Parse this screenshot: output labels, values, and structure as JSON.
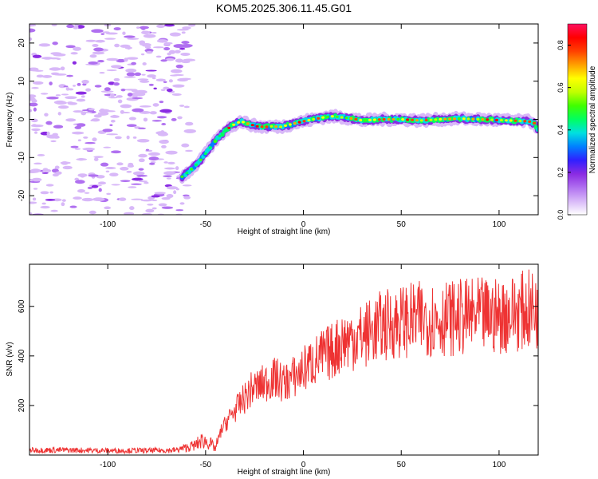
{
  "title": "KOM5.2025.306.11.45.G01",
  "chart_data": [
    {
      "type": "heatmap",
      "name": "spectrogram",
      "title": "KOM5.2025.306.11.45.G01",
      "xlabel": "Height of straight line (km)",
      "ylabel": "Frequency (Hz)",
      "xlim": [
        -140,
        120
      ],
      "ylim": [
        -25,
        25
      ],
      "x_ticks": [
        -100,
        -50,
        0,
        50,
        100
      ],
      "y_ticks": [
        -20,
        -10,
        0,
        10,
        20
      ],
      "x_tick_labels": [
        "-100",
        "-50",
        "0",
        "50",
        "100"
      ],
      "y_tick_labels": [
        "-20",
        "-10",
        "0",
        "10",
        "20"
      ],
      "noise_region_x": [
        -140,
        -57
      ],
      "ridge": {
        "x": [
          -62,
          -57,
          -53,
          -50,
          -47,
          -44,
          -40,
          -36,
          -32,
          -28,
          -24,
          -20,
          -16,
          -12,
          -8,
          -4,
          0,
          5,
          10,
          15,
          20,
          25,
          30,
          40,
          50,
          60,
          70,
          80,
          90,
          100,
          110,
          115,
          118,
          120
        ],
        "freq": [
          -15,
          -13,
          -11,
          -9,
          -7,
          -5,
          -3,
          -1.5,
          -0.5,
          -1.2,
          -1.8,
          -2,
          -1.8,
          -2,
          -1.5,
          -1,
          -0.5,
          0,
          0.5,
          0.8,
          0.5,
          0.2,
          -0.3,
          0,
          0,
          -0.3,
          0,
          0.2,
          0,
          -0.2,
          -0.4,
          -0.5,
          -1,
          -3
        ]
      },
      "colorbar": {
        "label": "Normalized spectral amplitude",
        "range": [
          0,
          0.9
        ],
        "ticks": [
          0.0,
          0.2,
          0.4,
          0.6,
          0.8
        ],
        "tick_labels": [
          "0.0",
          "0.2",
          "0.4",
          "0.6",
          "0.8"
        ],
        "colors": [
          "#ffffff",
          "#d8b8f8",
          "#b070f0",
          "#8a2be2",
          "#3020ff",
          "#0080ff",
          "#00e0e0",
          "#00ff60",
          "#40ff00",
          "#c0ff00",
          "#ffff00",
          "#ffa000",
          "#ff4000",
          "#ff0000",
          "#ff1060"
        ]
      }
    },
    {
      "type": "line",
      "name": "snr",
      "xlabel": "Height of straight line (km)",
      "ylabel": "SNR (v/v)",
      "xlim": [
        -140,
        120
      ],
      "ylim": [
        0,
        770
      ],
      "x_ticks": [
        -100,
        -50,
        0,
        50,
        100
      ],
      "y_ticks": [
        200,
        400,
        600
      ],
      "x_tick_labels": [
        "-100",
        "-50",
        "0",
        "50",
        "100"
      ],
      "y_tick_labels": [
        "200",
        "400",
        "600"
      ],
      "color": "#ee3333",
      "series": [
        {
          "name": "SNR",
          "x": [
            -140,
            -120,
            -100,
            -80,
            -65,
            -55,
            -52,
            -48,
            -45,
            -42,
            -38,
            -34,
            -30,
            -26,
            -22,
            -18,
            -14,
            -10,
            -6,
            -2,
            2,
            6,
            10,
            15,
            20,
            25,
            30,
            35,
            40,
            45,
            50,
            60,
            70,
            80,
            90,
            100,
            105,
            110,
            115,
            120
          ],
          "y": [
            20,
            20,
            18,
            18,
            20,
            40,
            60,
            50,
            25,
            100,
            150,
            190,
            230,
            270,
            280,
            300,
            310,
            290,
            310,
            330,
            360,
            380,
            400,
            420,
            460,
            470,
            480,
            500,
            520,
            530,
            540,
            550,
            550,
            555,
            560,
            560,
            570,
            580,
            585,
            590
          ]
        }
      ]
    }
  ]
}
